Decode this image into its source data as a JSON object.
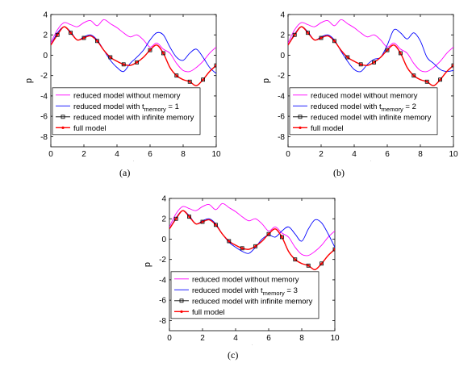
{
  "chart_data": [
    {
      "type": "line",
      "panel_label": "(a)",
      "xlabel": "t",
      "ylabel": "p",
      "xlim": [
        0,
        10
      ],
      "ylim": [
        -9,
        4
      ],
      "xticks": [
        0,
        2,
        4,
        6,
        8,
        10
      ],
      "yticks": [
        4,
        2,
        0,
        -2,
        -4,
        -6,
        -8
      ],
      "grid": false,
      "legend_position": "bottom-left",
      "series": [
        {
          "name": "reduced model without memory",
          "color": "#ff00ff",
          "marker": "none",
          "x": [
            0,
            0.4,
            0.8,
            1.2,
            1.6,
            2.0,
            2.4,
            2.8,
            3.2,
            3.6,
            4.0,
            4.4,
            4.8,
            5.2,
            5.6,
            6.0,
            6.4,
            6.8,
            7.2,
            7.6,
            8.0,
            8.4,
            8.8,
            9.2,
            9.6,
            10.0
          ],
          "y": [
            1.2,
            2.5,
            3.2,
            3.0,
            2.8,
            3.2,
            3.4,
            2.9,
            3.5,
            3.1,
            2.7,
            2.2,
            1.8,
            2.0,
            1.5,
            0.8,
            1.2,
            0.6,
            0.2,
            -0.8,
            -1.5,
            -1.6,
            -1.2,
            -0.6,
            0.2,
            0.8
          ]
        },
        {
          "name": "reduced model with t_memory = 1",
          "legend_main": "reduced model with t",
          "legend_sub": "memory",
          "legend_tail": " = 1",
          "color": "#0000ff",
          "marker": "none",
          "x": [
            0,
            0.4,
            0.8,
            1.2,
            1.6,
            2.0,
            2.4,
            2.8,
            3.2,
            3.6,
            4.0,
            4.4,
            4.8,
            5.2,
            5.6,
            6.0,
            6.4,
            6.8,
            7.2,
            7.6,
            8.0,
            8.4,
            8.8,
            9.2,
            9.6,
            10.0
          ],
          "y": [
            1.0,
            2.2,
            2.8,
            2.3,
            1.5,
            1.8,
            2.0,
            1.5,
            0.5,
            -0.5,
            -1.2,
            -1.6,
            -0.8,
            -0.2,
            0.5,
            1.5,
            2.2,
            2.0,
            0.8,
            -0.2,
            -0.5,
            0.2,
            0.6,
            -0.2,
            -1.2,
            -1.8
          ]
        },
        {
          "name": "reduced model with infinite memory",
          "color": "#000000",
          "marker": "square",
          "x": [
            0,
            0.4,
            0.8,
            1.2,
            1.6,
            2.0,
            2.4,
            2.8,
            3.2,
            3.6,
            4.0,
            4.4,
            4.8,
            5.2,
            5.6,
            6.0,
            6.4,
            6.8,
            7.2,
            7.6,
            8.0,
            8.4,
            8.8,
            9.2,
            9.6,
            10.0
          ],
          "y": [
            1.0,
            2.0,
            2.8,
            2.2,
            1.5,
            1.7,
            1.9,
            1.4,
            0.5,
            -0.2,
            -0.6,
            -0.9,
            -1.0,
            -0.7,
            -0.2,
            0.5,
            1.0,
            0.2,
            -1.2,
            -2.0,
            -2.4,
            -2.6,
            -3.0,
            -2.4,
            -1.6,
            -1.0
          ]
        },
        {
          "name": "full model",
          "color": "#ff0000",
          "marker": "dot",
          "x": [
            0,
            0.4,
            0.8,
            1.2,
            1.6,
            2.0,
            2.4,
            2.8,
            3.2,
            3.6,
            4.0,
            4.4,
            4.8,
            5.2,
            5.6,
            6.0,
            6.4,
            6.8,
            7.2,
            7.6,
            8.0,
            8.4,
            8.8,
            9.2,
            9.6,
            10.0
          ],
          "y": [
            1.0,
            2.0,
            2.8,
            2.2,
            1.5,
            1.7,
            1.9,
            1.4,
            0.5,
            -0.2,
            -0.6,
            -0.9,
            -1.0,
            -0.7,
            -0.2,
            0.5,
            1.0,
            0.2,
            -1.2,
            -2.0,
            -2.4,
            -2.6,
            -3.0,
            -2.4,
            -1.6,
            -1.0
          ]
        }
      ]
    },
    {
      "type": "line",
      "panel_label": "(b)",
      "xlabel": "t",
      "ylabel": "p",
      "xlim": [
        0,
        10
      ],
      "ylim": [
        -9,
        4
      ],
      "xticks": [
        0,
        2,
        4,
        6,
        8,
        10
      ],
      "yticks": [
        4,
        2,
        0,
        -2,
        -4,
        -6,
        -8
      ],
      "grid": false,
      "legend_position": "bottom-left",
      "series": [
        {
          "name": "reduced model without memory",
          "color": "#ff00ff",
          "marker": "none",
          "x": [
            0,
            0.4,
            0.8,
            1.2,
            1.6,
            2.0,
            2.4,
            2.8,
            3.2,
            3.6,
            4.0,
            4.4,
            4.8,
            5.2,
            5.6,
            6.0,
            6.4,
            6.8,
            7.2,
            7.6,
            8.0,
            8.4,
            8.8,
            9.2,
            9.6,
            10.0
          ],
          "y": [
            1.2,
            2.5,
            3.2,
            3.0,
            2.8,
            3.2,
            3.4,
            2.9,
            3.5,
            3.1,
            2.7,
            2.2,
            1.8,
            2.0,
            1.5,
            0.8,
            1.2,
            0.6,
            0.2,
            -0.8,
            -1.5,
            -1.6,
            -1.2,
            -0.6,
            0.2,
            0.8
          ]
        },
        {
          "name": "reduced model with t_memory = 2",
          "legend_main": "reduced model with t",
          "legend_sub": "memory",
          "legend_tail": " = 2",
          "color": "#0000ff",
          "marker": "none",
          "x": [
            0,
            0.4,
            0.8,
            1.2,
            1.6,
            2.0,
            2.4,
            2.8,
            3.2,
            3.6,
            4.0,
            4.4,
            4.8,
            5.2,
            5.6,
            6.0,
            6.4,
            6.8,
            7.2,
            7.6,
            8.0,
            8.4,
            8.8,
            9.2,
            9.6,
            10.0
          ],
          "y": [
            1.0,
            2.1,
            2.8,
            2.3,
            1.5,
            1.8,
            2.0,
            1.5,
            0.4,
            -0.6,
            -1.4,
            -1.6,
            -0.9,
            -0.4,
            -0.2,
            1.0,
            2.5,
            2.2,
            1.6,
            2.2,
            1.4,
            -0.2,
            -0.8,
            -1.4,
            -1.6,
            -1.5
          ]
        },
        {
          "name": "reduced model with infinite memory",
          "color": "#000000",
          "marker": "square",
          "x": [
            0,
            0.4,
            0.8,
            1.2,
            1.6,
            2.0,
            2.4,
            2.8,
            3.2,
            3.6,
            4.0,
            4.4,
            4.8,
            5.2,
            5.6,
            6.0,
            6.4,
            6.8,
            7.2,
            7.6,
            8.0,
            8.4,
            8.8,
            9.2,
            9.6,
            10.0
          ],
          "y": [
            1.0,
            2.0,
            2.8,
            2.2,
            1.5,
            1.7,
            1.9,
            1.4,
            0.5,
            -0.2,
            -0.6,
            -0.9,
            -1.0,
            -0.7,
            -0.2,
            0.5,
            1.0,
            0.2,
            -1.2,
            -2.0,
            -2.4,
            -2.6,
            -3.0,
            -2.4,
            -1.6,
            -1.0
          ]
        },
        {
          "name": "full model",
          "color": "#ff0000",
          "marker": "dot",
          "x": [
            0,
            0.4,
            0.8,
            1.2,
            1.6,
            2.0,
            2.4,
            2.8,
            3.2,
            3.6,
            4.0,
            4.4,
            4.8,
            5.2,
            5.6,
            6.0,
            6.4,
            6.8,
            7.2,
            7.6,
            8.0,
            8.4,
            8.8,
            9.2,
            9.6,
            10.0
          ],
          "y": [
            1.0,
            2.0,
            2.8,
            2.2,
            1.5,
            1.7,
            1.9,
            1.4,
            0.5,
            -0.2,
            -0.6,
            -0.9,
            -1.0,
            -0.7,
            -0.2,
            0.5,
            1.0,
            0.2,
            -1.2,
            -2.0,
            -2.4,
            -2.6,
            -3.0,
            -2.4,
            -1.6,
            -1.0
          ]
        }
      ]
    },
    {
      "type": "line",
      "panel_label": "(c)",
      "xlabel": "t",
      "ylabel": "p",
      "xlim": [
        0,
        10
      ],
      "ylim": [
        -9,
        4
      ],
      "xticks": [
        0,
        2,
        4,
        6,
        8,
        10
      ],
      "yticks": [
        4,
        2,
        0,
        -2,
        -4,
        -6,
        -8
      ],
      "grid": false,
      "legend_position": "bottom-left",
      "series": [
        {
          "name": "reduced model without memory",
          "color": "#ff00ff",
          "marker": "none",
          "x": [
            0,
            0.4,
            0.8,
            1.2,
            1.6,
            2.0,
            2.4,
            2.8,
            3.2,
            3.6,
            4.0,
            4.4,
            4.8,
            5.2,
            5.6,
            6.0,
            6.4,
            6.8,
            7.2,
            7.6,
            8.0,
            8.4,
            8.8,
            9.2,
            9.6,
            10.0
          ],
          "y": [
            1.2,
            2.5,
            3.2,
            3.0,
            2.8,
            3.2,
            3.4,
            2.9,
            3.5,
            3.1,
            2.7,
            2.2,
            1.8,
            2.0,
            1.5,
            0.8,
            1.2,
            0.6,
            0.2,
            -0.8,
            -1.5,
            -1.6,
            -1.2,
            -0.6,
            0.2,
            0.8
          ]
        },
        {
          "name": "reduced model with t_memory = 3",
          "legend_main": "reduced model with t",
          "legend_sub": "memory",
          "legend_tail": " = 3",
          "color": "#0000ff",
          "marker": "none",
          "x": [
            0,
            0.4,
            0.8,
            1.2,
            1.6,
            2.0,
            2.4,
            2.8,
            3.2,
            3.6,
            4.0,
            4.4,
            4.8,
            5.2,
            5.6,
            6.0,
            6.4,
            6.8,
            7.2,
            7.6,
            8.0,
            8.4,
            8.8,
            9.2,
            9.6,
            10.0
          ],
          "y": [
            1.0,
            2.1,
            2.8,
            2.3,
            1.5,
            1.8,
            2.0,
            1.5,
            0.5,
            -0.3,
            -0.8,
            -1.2,
            -1.4,
            -0.8,
            0.0,
            0.4,
            0.2,
            0.8,
            1.2,
            0.5,
            -0.2,
            1.0,
            1.9,
            1.6,
            0.5,
            -0.8
          ]
        },
        {
          "name": "reduced model with infinite memory",
          "color": "#000000",
          "marker": "square",
          "x": [
            0,
            0.4,
            0.8,
            1.2,
            1.6,
            2.0,
            2.4,
            2.8,
            3.2,
            3.6,
            4.0,
            4.4,
            4.8,
            5.2,
            5.6,
            6.0,
            6.4,
            6.8,
            7.2,
            7.6,
            8.0,
            8.4,
            8.8,
            9.2,
            9.6,
            10.0
          ],
          "y": [
            1.0,
            2.0,
            2.8,
            2.2,
            1.5,
            1.7,
            1.9,
            1.4,
            0.5,
            -0.2,
            -0.6,
            -0.9,
            -1.0,
            -0.7,
            -0.2,
            0.5,
            1.0,
            0.2,
            -1.2,
            -2.0,
            -2.4,
            -2.6,
            -3.0,
            -2.4,
            -1.6,
            -1.0
          ]
        },
        {
          "name": "full model",
          "color": "#ff0000",
          "marker": "dot",
          "x": [
            0,
            0.4,
            0.8,
            1.2,
            1.6,
            2.0,
            2.4,
            2.8,
            3.2,
            3.6,
            4.0,
            4.4,
            4.8,
            5.2,
            5.6,
            6.0,
            6.4,
            6.8,
            7.2,
            7.6,
            8.0,
            8.4,
            8.8,
            9.2,
            9.6,
            10.0
          ],
          "y": [
            1.0,
            2.0,
            2.8,
            2.2,
            1.5,
            1.7,
            1.9,
            1.4,
            0.5,
            -0.2,
            -0.6,
            -0.9,
            -1.0,
            -0.7,
            -0.2,
            0.5,
            1.0,
            0.2,
            -1.2,
            -2.0,
            -2.4,
            -2.6,
            -3.0,
            -2.4,
            -1.6,
            -1.0
          ]
        }
      ]
    }
  ]
}
